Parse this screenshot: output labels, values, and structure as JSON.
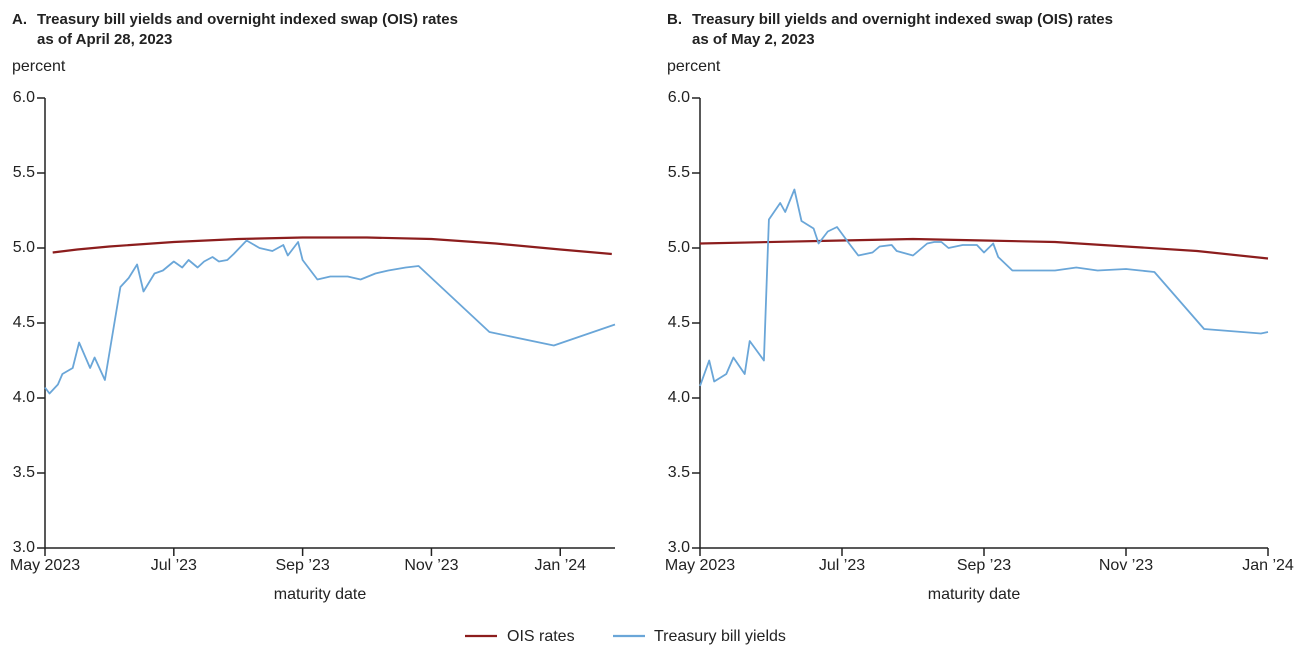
{
  "chart_data": [
    {
      "type": "line",
      "panel": "A.",
      "title": [
        "Treasury bill yields and overnight indexed swap (OIS) rates",
        "as of April 28, 2023"
      ],
      "ylabel": "percent",
      "xlabel": "maturity date",
      "xlim": [
        0,
        8.85
      ],
      "ylim": [
        3,
        6
      ],
      "xticks": [
        {
          "value": 0,
          "label": "May 2023"
        },
        {
          "value": 2,
          "label": "Jul ’23"
        },
        {
          "value": 4,
          "label": "Sep ’23"
        },
        {
          "value": 6,
          "label": "Nov ’23"
        },
        {
          "value": 8,
          "label": "Jan ’24"
        }
      ],
      "yticks": [
        {
          "value": 3,
          "label": "3.0"
        },
        3.5,
        {
          "value": 4,
          "label": "4.0"
        },
        4.5,
        {
          "value": 5,
          "label": "5.0"
        },
        5.5,
        {
          "value": 6,
          "label": "6.0"
        }
      ],
      "series": [
        {
          "name": "OIS rates",
          "color": "#8c1d1d",
          "x": [
            0.12,
            0.5,
            1,
            2,
            3,
            4,
            5,
            6,
            7,
            8,
            8.8
          ],
          "values": [
            4.97,
            4.99,
            5.01,
            5.04,
            5.06,
            5.07,
            5.07,
            5.06,
            5.03,
            4.99,
            4.96
          ]
        },
        {
          "name": "Treasury bill yields",
          "color": "#6aa6d8",
          "x": [
            0,
            0.07,
            0.2,
            0.27,
            0.43,
            0.53,
            0.7,
            0.77,
            0.93,
            1.17,
            1.3,
            1.43,
            1.53,
            1.7,
            1.83,
            2.0,
            2.13,
            2.23,
            2.37,
            2.47,
            2.6,
            2.7,
            2.83,
            2.93,
            3.13,
            3.33,
            3.53,
            3.7,
            3.77,
            3.93,
            4.0,
            4.23,
            4.43,
            4.7,
            4.9,
            5.13,
            5.33,
            5.6,
            5.8,
            6.9,
            7.9,
            8.85
          ],
          "values": [
            4.07,
            4.03,
            4.09,
            4.16,
            4.2,
            4.37,
            4.2,
            4.27,
            4.12,
            4.74,
            4.8,
            4.89,
            4.71,
            4.83,
            4.85,
            4.91,
            4.87,
            4.92,
            4.87,
            4.91,
            4.94,
            4.91,
            4.92,
            4.96,
            5.05,
            5.0,
            4.98,
            5.02,
            4.95,
            5.04,
            4.92,
            4.79,
            4.81,
            4.81,
            4.79,
            4.83,
            4.85,
            4.87,
            4.88,
            4.44,
            4.35,
            4.49
          ]
        }
      ]
    },
    {
      "type": "line",
      "panel": "B.",
      "title": [
        "Treasury bill yields and overnight indexed swap (OIS) rates",
        "as of May 2, 2023"
      ],
      "ylabel": "percent",
      "xlabel": "maturity date",
      "xlim": [
        0,
        8
      ],
      "ylim": [
        3,
        6
      ],
      "xticks": [
        {
          "value": 0,
          "label": "May 2023"
        },
        {
          "value": 2,
          "label": "Jul ’23"
        },
        {
          "value": 4,
          "label": "Sep ’23"
        },
        {
          "value": 6,
          "label": "Nov ’23"
        },
        {
          "value": 8,
          "label": "Jan ’24"
        }
      ],
      "yticks": [
        {
          "value": 3,
          "label": "3.0"
        },
        3.5,
        {
          "value": 4,
          "label": "4.0"
        },
        4.5,
        {
          "value": 5,
          "label": "5.0"
        },
        5.5,
        {
          "value": 6,
          "label": "6.0"
        }
      ],
      "series": [
        {
          "name": "OIS rates",
          "color": "#8c1d1d",
          "x": [
            0,
            2,
            3,
            4,
            5,
            6,
            7,
            8
          ],
          "values": [
            5.03,
            5.05,
            5.06,
            5.05,
            5.04,
            5.01,
            4.98,
            4.93
          ]
        },
        {
          "name": "Treasury bill yields",
          "color": "#6aa6d8",
          "x": [
            0,
            0.13,
            0.2,
            0.37,
            0.47,
            0.63,
            0.7,
            0.9,
            0.97,
            1.13,
            1.2,
            1.33,
            1.43,
            1.6,
            1.67,
            1.8,
            1.93,
            2.1,
            2.23,
            2.43,
            2.53,
            2.7,
            2.77,
            3.0,
            3.2,
            3.3,
            3.4,
            3.5,
            3.7,
            3.9,
            4.0,
            4.13,
            4.2,
            4.4,
            4.8,
            5.0,
            5.3,
            5.6,
            6.0,
            6.2,
            6.4,
            7.1,
            7.9,
            8.0
          ],
          "values": [
            4.08,
            4.25,
            4.11,
            4.16,
            4.27,
            4.16,
            4.38,
            4.25,
            5.19,
            5.3,
            5.24,
            5.39,
            5.18,
            5.13,
            5.03,
            5.11,
            5.14,
            5.03,
            4.95,
            4.97,
            5.01,
            5.02,
            4.98,
            4.95,
            5.03,
            5.04,
            5.04,
            5.0,
            5.02,
            5.02,
            4.97,
            5.03,
            4.94,
            4.85,
            4.85,
            4.85,
            4.87,
            4.85,
            4.86,
            4.85,
            4.84,
            4.46,
            4.43,
            4.44
          ]
        }
      ]
    }
  ]
}
